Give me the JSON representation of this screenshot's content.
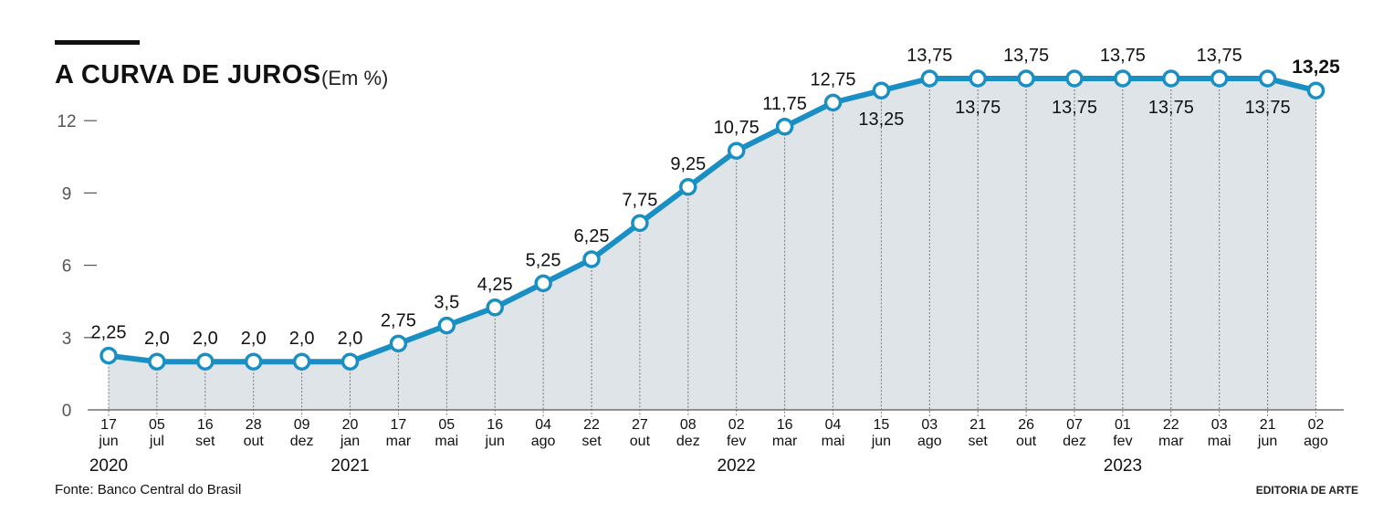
{
  "header": {
    "title": "A CURVA DE JUROS",
    "unit": "(Em %)"
  },
  "footer": {
    "source": "Fonte: Banco Central do Brasil",
    "credit": "EDITORIA DE ARTE"
  },
  "colors": {
    "line": "#1a8fc4",
    "area": "#dfe4e8",
    "axis": "#555555",
    "text": "#111111"
  },
  "chart_data": {
    "type": "line",
    "title": "A CURVA DE JUROS",
    "ylabel": "(Em %)",
    "ylim": [
      0,
      14
    ],
    "yticks": [
      0,
      3,
      6,
      9,
      12
    ],
    "points": [
      {
        "day": "17",
        "month": "jun",
        "value": 2.25,
        "label": "2,25",
        "label_pos": "above"
      },
      {
        "day": "05",
        "month": "jul",
        "value": 2.0,
        "label": "2,0",
        "label_pos": "above"
      },
      {
        "day": "16",
        "month": "set",
        "value": 2.0,
        "label": "2,0",
        "label_pos": "above"
      },
      {
        "day": "28",
        "month": "out",
        "value": 2.0,
        "label": "2,0",
        "label_pos": "above"
      },
      {
        "day": "09",
        "month": "dez",
        "value": 2.0,
        "label": "2,0",
        "label_pos": "above"
      },
      {
        "day": "20",
        "month": "jan",
        "value": 2.0,
        "label": "2,0",
        "label_pos": "above"
      },
      {
        "day": "17",
        "month": "mar",
        "value": 2.75,
        "label": "2,75",
        "label_pos": "above"
      },
      {
        "day": "05",
        "month": "mai",
        "value": 3.5,
        "label": "3,5",
        "label_pos": "above"
      },
      {
        "day": "16",
        "month": "jun",
        "value": 4.25,
        "label": "4,25",
        "label_pos": "above"
      },
      {
        "day": "04",
        "month": "ago",
        "value": 5.25,
        "label": "5,25",
        "label_pos": "above"
      },
      {
        "day": "22",
        "month": "set",
        "value": 6.25,
        "label": "6,25",
        "label_pos": "above"
      },
      {
        "day": "27",
        "month": "out",
        "value": 7.75,
        "label": "7,75",
        "label_pos": "above"
      },
      {
        "day": "08",
        "month": "dez",
        "value": 9.25,
        "label": "9,25",
        "label_pos": "above"
      },
      {
        "day": "02",
        "month": "fev",
        "value": 10.75,
        "label": "10,75",
        "label_pos": "above"
      },
      {
        "day": "16",
        "month": "mar",
        "value": 11.75,
        "label": "11,75",
        "label_pos": "above"
      },
      {
        "day": "04",
        "month": "mai",
        "value": 12.75,
        "label": "12,75",
        "label_pos": "above"
      },
      {
        "day": "15",
        "month": "jun",
        "value": 13.25,
        "label": "13,25",
        "label_pos": "below"
      },
      {
        "day": "03",
        "month": "ago",
        "value": 13.75,
        "label": "13,75",
        "label_pos": "above"
      },
      {
        "day": "21",
        "month": "set",
        "value": 13.75,
        "label": "13,75",
        "label_pos": "below"
      },
      {
        "day": "26",
        "month": "out",
        "value": 13.75,
        "label": "13,75",
        "label_pos": "above"
      },
      {
        "day": "07",
        "month": "dez",
        "value": 13.75,
        "label": "13,75",
        "label_pos": "below"
      },
      {
        "day": "01",
        "month": "fev",
        "value": 13.75,
        "label": "13,75",
        "label_pos": "above"
      },
      {
        "day": "22",
        "month": "mar",
        "value": 13.75,
        "label": "13,75",
        "label_pos": "below"
      },
      {
        "day": "03",
        "month": "mai",
        "value": 13.75,
        "label": "13,75",
        "label_pos": "above"
      },
      {
        "day": "21",
        "month": "jun",
        "value": 13.75,
        "label": "13,75",
        "label_pos": "below"
      },
      {
        "day": "02",
        "month": "ago",
        "value": 13.25,
        "label": "13,25",
        "label_pos": "above",
        "highlight": true
      }
    ],
    "years": [
      {
        "label": "2020",
        "index": 0
      },
      {
        "label": "2021",
        "index": 5
      },
      {
        "label": "2022",
        "index": 13
      },
      {
        "label": "2023",
        "index": 21
      }
    ]
  }
}
